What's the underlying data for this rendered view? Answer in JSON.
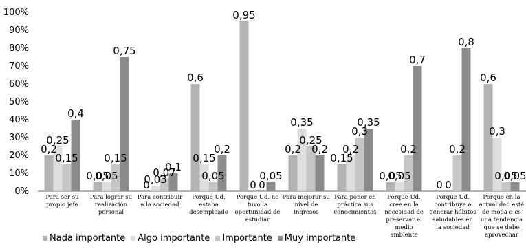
{
  "chart_data": {
    "type": "bar",
    "ylim": [
      0,
      1
    ],
    "yticks": [
      "0%",
      "10%",
      "20%",
      "30%",
      "40%",
      "50%",
      "60%",
      "70%",
      "80%",
      "90%",
      "100%"
    ],
    "grid": false,
    "legend_position": "bottom-left",
    "categories": [
      "Para ser su propio jefe",
      "Para lograr su realización personal",
      "Para contribuir a la sociedad",
      "Porque Ud. estaba desempleado",
      "Porque Ud. no tuvo la oportunidad de estudiar",
      "Para mejorar su nivel de ingresos",
      "Para poner en práctica sus conocimientos",
      "Porque Ud. cree en la necesidad de preservar el medio ambiente",
      "Porque Ud. contribuye a generar hábitos saludables en la sociedad",
      "Porque en la actualidad está de moda o es una tendencia que se debe aprovechar"
    ],
    "series": [
      {
        "name": "Nada importante",
        "color": "#b3b3b3",
        "values": [
          0.2,
          0.05,
          0,
          0.6,
          0.95,
          0.2,
          0.15,
          0.05,
          0,
          0.6
        ],
        "labels": [
          "0,2",
          "0,05",
          "0",
          "0,6",
          "0,95",
          "0,2",
          "0,15",
          "0,05",
          "0",
          "0,6"
        ]
      },
      {
        "name": "Algo importante",
        "color": "#dedede",
        "values": [
          0.25,
          0.05,
          0.03,
          0.15,
          0,
          0.35,
          0.2,
          0.05,
          0,
          0.3
        ],
        "labels": [
          "0,25",
          "0,05",
          "0,03",
          "0,15",
          "0",
          "0,35",
          "0,2",
          "0,05",
          "0",
          "0,3"
        ]
      },
      {
        "name": "Importante",
        "color": "#c6c6c6",
        "values": [
          0.15,
          0.15,
          0.07,
          0.05,
          0,
          0.25,
          0.3,
          0.2,
          0.2,
          0.05
        ],
        "labels": [
          "0,15",
          "0,15",
          "0,07",
          "0,05",
          "0",
          "0,25",
          "0,3",
          "0,2",
          "0,2",
          "0,05"
        ]
      },
      {
        "name": "Muy importante",
        "color": "#8c8c8c",
        "values": [
          0.4,
          0.75,
          0.1,
          0.2,
          0.05,
          0.2,
          0.35,
          0.7,
          0.8,
          0.05
        ],
        "labels": [
          "0,4",
          "0,75",
          "0,1",
          "0,2",
          "0,05",
          "0,2",
          "0,35",
          "0,7",
          "0,8",
          "0,05"
        ]
      }
    ]
  }
}
